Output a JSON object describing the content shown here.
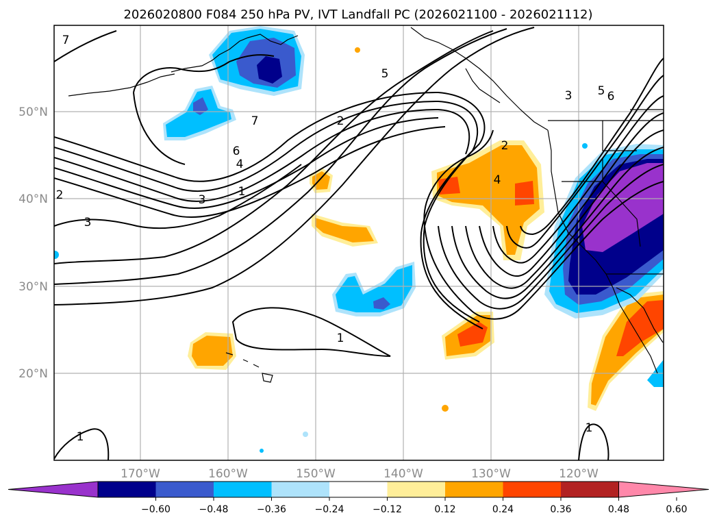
{
  "title": "2026020800 F084 250 hPa PV, IVT Landfall PC (2026021100 - 2026021112)",
  "map": {
    "lon_ticks": [
      "170°W",
      "160°W",
      "150°W",
      "140°W",
      "130°W",
      "120°W"
    ],
    "lat_ticks": [
      "50°N",
      "40°N",
      "30°N",
      "20°N"
    ],
    "gridlines": true
  },
  "contour_labels": [
    "7",
    "5",
    "2",
    "3",
    "5",
    "6",
    "7",
    "6",
    "4",
    "1",
    "3",
    "2",
    "3",
    "2",
    "4",
    "1",
    "1",
    "1"
  ],
  "colorbar": {
    "colors": [
      "#9932CC",
      "#00008B",
      "#3A5ACD",
      "#00BFFF",
      "#AEE3FB",
      "#FFFFFF",
      "#FFEE99",
      "#FFA500",
      "#FF4500",
      "#B22222",
      "#FF88AA"
    ],
    "ticks": [
      "−0.60",
      "−0.48",
      "−0.36",
      "−0.24",
      "−0.12",
      "0.12",
      "0.24",
      "0.36",
      "0.48",
      "0.60"
    ]
  },
  "colors": {
    "grid": "#b0b0b0",
    "contour": "#000000",
    "coast": "#000000"
  }
}
